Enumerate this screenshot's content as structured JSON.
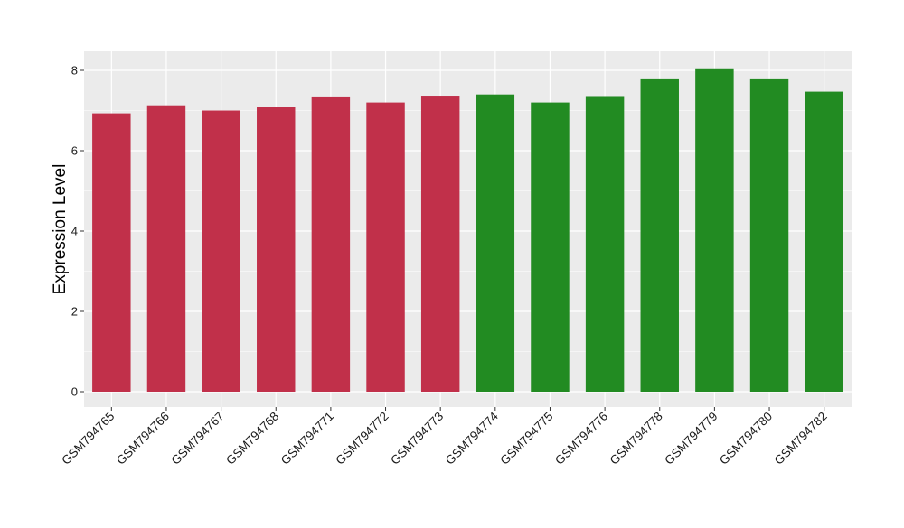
{
  "chart_data": {
    "type": "bar",
    "title": "",
    "xlabel": "",
    "ylabel": "Expression Level",
    "ylim": [
      0,
      8.4
    ],
    "yticks": [
      0,
      2,
      4,
      6,
      8
    ],
    "grid": true,
    "categories": [
      "GSM794765",
      "GSM794766",
      "GSM794767",
      "GSM794768",
      "GSM794771",
      "GSM794772",
      "GSM794773",
      "GSM794774",
      "GSM794775",
      "GSM794776",
      "GSM794778",
      "GSM794779",
      "GSM794780",
      "GSM794782"
    ],
    "values": [
      6.93,
      7.13,
      7.0,
      7.1,
      7.35,
      7.2,
      7.37,
      7.4,
      7.2,
      7.36,
      7.8,
      8.05,
      7.8,
      7.47
    ],
    "colors": [
      "#c1304a",
      "#c1304a",
      "#c1304a",
      "#c1304a",
      "#c1304a",
      "#c1304a",
      "#c1304a",
      "#228b22",
      "#228b22",
      "#228b22",
      "#228b22",
      "#228b22",
      "#228b22",
      "#228b22"
    ],
    "panel_background": "#ebebeb",
    "grid_color": "#ffffff"
  }
}
